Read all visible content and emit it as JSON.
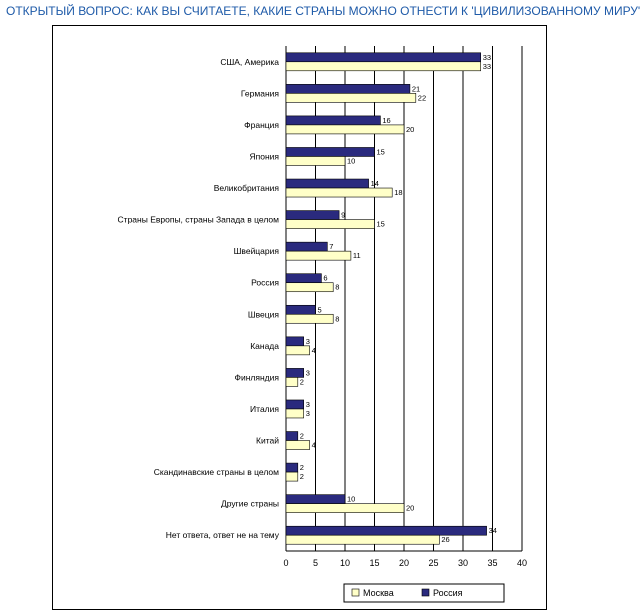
{
  "page": {
    "title": "ОТКРЫТЫЙ ВОПРОС: КАК ВЫ СЧИТАЕТЕ, КАКИЕ СТРАНЫ МОЖНО ОТНЕСТИ К 'ЦИВИЛИЗОВАННОМУ МИРУ'?"
  },
  "colors": {
    "title": "#1e5aa8",
    "russia": "#2a2a7e",
    "moscow": "#ffffc8",
    "bar_border": "#000000",
    "gridline": "#000000"
  },
  "chart_data": {
    "type": "bar",
    "orientation": "horizontal",
    "title": "",
    "xlabel": "",
    "ylabel": "",
    "xlim": [
      0,
      40
    ],
    "xticks": [
      0,
      5,
      10,
      15,
      20,
      25,
      30,
      35,
      40
    ],
    "grid": "vertical",
    "legend_position": "bottom-right",
    "categories": [
      "США, Америка",
      "Германия",
      "Франция",
      "Япония",
      "Великобритания",
      "Страны Европы, страны Запада в целом",
      "Швейцария",
      "Россия",
      "Швеция",
      "Канада",
      "Финляндия",
      "Италия",
      "Китай",
      "Скандинавские страны в целом",
      "Другие страны",
      "Нет ответа, ответ не на тему"
    ],
    "series": [
      {
        "name": "Россия",
        "values": [
          33,
          21,
          16,
          15,
          14,
          9,
          7,
          6,
          5,
          3,
          3,
          3,
          2,
          2,
          10,
          34
        ]
      },
      {
        "name": "Москва",
        "values": [
          33,
          22,
          20,
          10,
          18,
          15,
          11,
          8,
          8,
          4,
          2,
          3,
          4,
          2,
          20,
          26
        ]
      }
    ],
    "legend": [
      "Москва",
      "Россия"
    ]
  }
}
